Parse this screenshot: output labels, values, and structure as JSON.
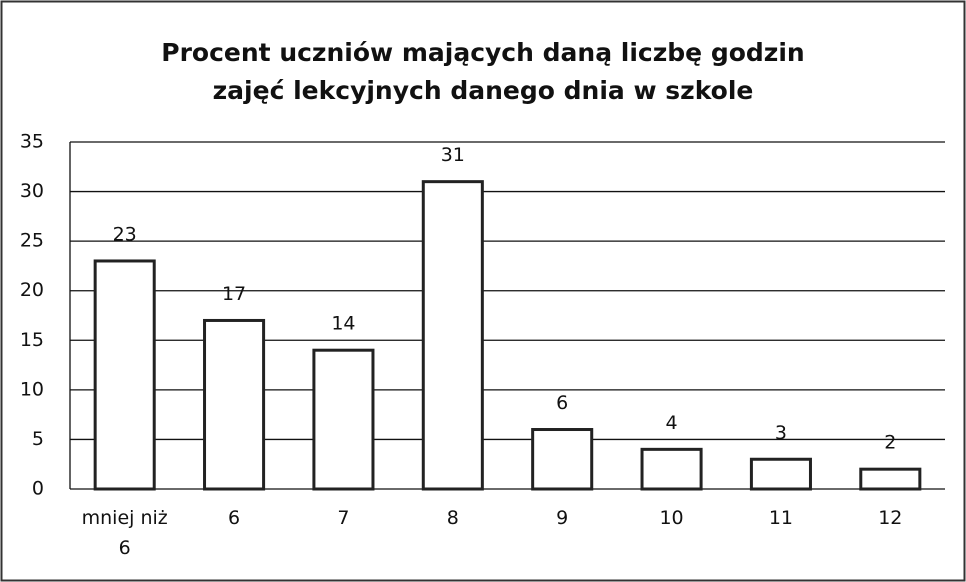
{
  "chart_data": {
    "type": "bar",
    "title": "Procent uczniów mających daną liczbę godzin zajęć lekcyjnych danego dnia w szkole",
    "categories": [
      "mniej niż 6",
      "6",
      "7",
      "8",
      "9",
      "10",
      "11",
      "12"
    ],
    "values": [
      23,
      17,
      14,
      31,
      6,
      4,
      3,
      2
    ],
    "color": "#ffffff",
    "ylim": [
      0,
      35
    ],
    "yticks": [
      0,
      5,
      10,
      15,
      20,
      25,
      30,
      35
    ],
    "grid": true
  }
}
